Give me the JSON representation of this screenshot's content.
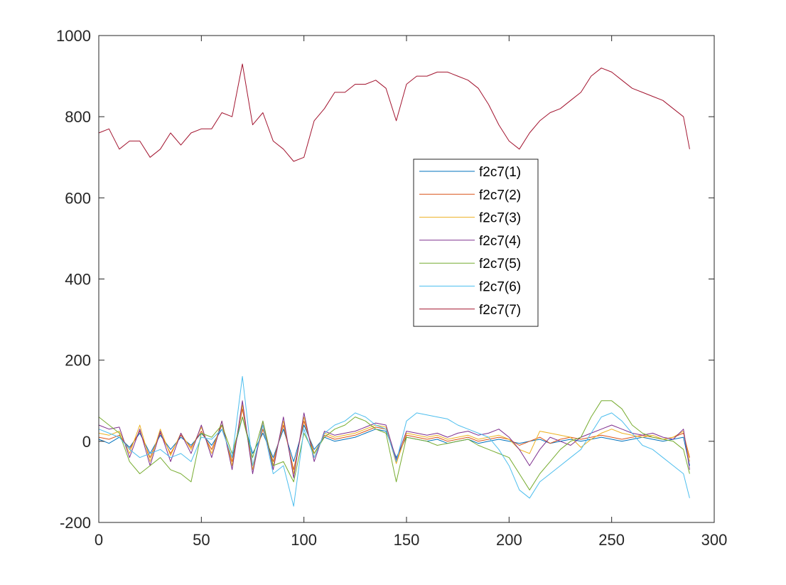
{
  "chart_data": {
    "type": "line",
    "title": "",
    "xlabel": "",
    "ylabel": "",
    "xlim": [
      0,
      300
    ],
    "ylim": [
      -200,
      1000
    ],
    "xticks": [
      0,
      50,
      100,
      150,
      200,
      250,
      300
    ],
    "yticks": [
      -200,
      0,
      200,
      400,
      600,
      800,
      1000
    ],
    "grid": false,
    "legend_position": "center",
    "x": [
      0,
      5,
      10,
      15,
      20,
      25,
      30,
      35,
      40,
      45,
      50,
      55,
      60,
      65,
      70,
      75,
      80,
      85,
      90,
      95,
      100,
      105,
      110,
      115,
      120,
      125,
      130,
      135,
      140,
      145,
      150,
      155,
      160,
      165,
      170,
      175,
      180,
      185,
      190,
      195,
      200,
      205,
      210,
      215,
      220,
      225,
      230,
      235,
      240,
      245,
      250,
      255,
      260,
      265,
      270,
      275,
      280,
      285,
      288
    ],
    "series": [
      {
        "name": "f2c7(1)",
        "color": "#0072BD",
        "values": [
          5,
          -5,
          10,
          -15,
          20,
          -30,
          15,
          -20,
          10,
          -10,
          20,
          -10,
          30,
          -40,
          60,
          -30,
          20,
          -40,
          30,
          -50,
          40,
          -20,
          10,
          0,
          5,
          10,
          20,
          30,
          25,
          -40,
          10,
          5,
          0,
          5,
          -5,
          0,
          5,
          -5,
          0,
          5,
          0,
          -5,
          0,
          5,
          -5,
          0,
          5,
          0,
          5,
          10,
          5,
          0,
          5,
          10,
          5,
          0,
          5,
          10,
          -60
        ]
      },
      {
        "name": "f2c7(2)",
        "color": "#D95319",
        "values": [
          10,
          5,
          15,
          -20,
          25,
          -40,
          20,
          -30,
          15,
          -15,
          25,
          -20,
          40,
          -50,
          80,
          -60,
          30,
          -50,
          40,
          -70,
          50,
          -30,
          15,
          5,
          10,
          15,
          25,
          35,
          30,
          -50,
          15,
          10,
          5,
          10,
          0,
          5,
          10,
          0,
          5,
          10,
          5,
          -10,
          0,
          10,
          -5,
          5,
          10,
          5,
          10,
          15,
          10,
          5,
          10,
          15,
          10,
          5,
          10,
          20,
          -40
        ]
      },
      {
        "name": "f2c7(3)",
        "color": "#EDB120",
        "values": [
          20,
          15,
          25,
          -30,
          40,
          -50,
          30,
          -35,
          20,
          -20,
          35,
          -30,
          50,
          -60,
          90,
          -70,
          40,
          -60,
          50,
          -80,
          60,
          -40,
          20,
          10,
          15,
          20,
          30,
          40,
          35,
          -55,
          20,
          15,
          10,
          15,
          5,
          10,
          15,
          5,
          10,
          15,
          5,
          -20,
          -30,
          25,
          20,
          15,
          10,
          -15,
          5,
          20,
          30,
          20,
          15,
          10,
          15,
          5,
          10,
          25,
          -50
        ]
      },
      {
        "name": "f2c7(4)",
        "color": "#7E2F8E",
        "values": [
          40,
          30,
          35,
          -40,
          30,
          -60,
          25,
          -50,
          20,
          -30,
          40,
          -40,
          50,
          -70,
          100,
          -80,
          50,
          -70,
          60,
          -90,
          70,
          -50,
          25,
          15,
          20,
          25,
          35,
          45,
          40,
          -45,
          25,
          20,
          15,
          20,
          10,
          20,
          25,
          15,
          20,
          30,
          10,
          -20,
          -60,
          -20,
          10,
          0,
          -10,
          10,
          20,
          30,
          40,
          30,
          20,
          15,
          20,
          10,
          5,
          30,
          -70
        ]
      },
      {
        "name": "f2c7(5)",
        "color": "#77AC30",
        "values": [
          60,
          40,
          20,
          -50,
          -80,
          -60,
          -40,
          -70,
          -80,
          -100,
          20,
          10,
          40,
          -30,
          60,
          -40,
          50,
          -60,
          -50,
          -100,
          20,
          -30,
          10,
          30,
          40,
          60,
          50,
          30,
          20,
          -100,
          10,
          5,
          0,
          -10,
          -5,
          0,
          5,
          -10,
          -20,
          -30,
          -40,
          -80,
          -120,
          -80,
          -50,
          -20,
          0,
          10,
          60,
          100,
          100,
          80,
          40,
          20,
          10,
          5,
          0,
          -20,
          -80
        ]
      },
      {
        "name": "f2c7(6)",
        "color": "#4DBEEE",
        "values": [
          30,
          20,
          10,
          -20,
          -40,
          -30,
          -20,
          -40,
          -30,
          -50,
          10,
          5,
          30,
          -40,
          160,
          -60,
          40,
          -80,
          -60,
          -160,
          30,
          -40,
          20,
          40,
          50,
          70,
          60,
          40,
          30,
          -50,
          50,
          70,
          65,
          60,
          55,
          40,
          30,
          20,
          10,
          -20,
          -60,
          -120,
          -140,
          -100,
          -80,
          -60,
          -40,
          -20,
          20,
          60,
          70,
          50,
          20,
          -10,
          -20,
          -40,
          -60,
          -80,
          -140
        ]
      },
      {
        "name": "f2c7(7)",
        "color": "#A2142F",
        "values": [
          760,
          770,
          720,
          740,
          740,
          700,
          720,
          760,
          730,
          760,
          770,
          770,
          810,
          800,
          930,
          780,
          810,
          740,
          720,
          690,
          700,
          790,
          820,
          860,
          860,
          880,
          880,
          890,
          870,
          790,
          880,
          900,
          900,
          910,
          910,
          900,
          890,
          870,
          830,
          780,
          740,
          720,
          760,
          790,
          810,
          820,
          840,
          860,
          900,
          920,
          910,
          890,
          870,
          860,
          850,
          840,
          820,
          800,
          720
        ]
      }
    ]
  }
}
